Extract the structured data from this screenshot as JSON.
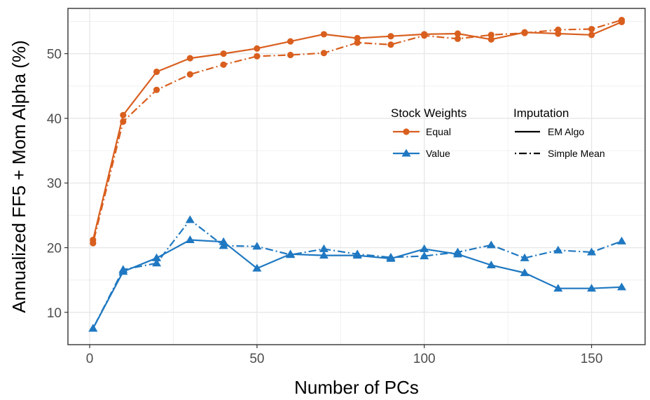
{
  "chart_data": {
    "type": "line",
    "xlabel": "Number of PCs",
    "ylabel": "Annualized FF5 + Mom Alpha (%)",
    "xlim": [
      -6.5,
      166
    ],
    "ylim": [
      5,
      57
    ],
    "x_ticks": [
      0,
      50,
      100,
      150
    ],
    "y_ticks": [
      10,
      20,
      30,
      40,
      50
    ],
    "grid": true,
    "legend_position": "right, inside plot",
    "legend": {
      "weights_title": "Stock Weights",
      "weights": [
        {
          "label": "Equal",
          "color": "#d95f1f",
          "marker": "circle"
        },
        {
          "label": "Value",
          "color": "#1f78c1",
          "marker": "triangle"
        }
      ],
      "imputation_title": "Imputation",
      "imputation": [
        {
          "label": "EM Algo",
          "dash": "solid"
        },
        {
          "label": "Simple Mean",
          "dash": "dotdash"
        }
      ]
    },
    "x": [
      1,
      10,
      20,
      30,
      40,
      50,
      60,
      70,
      80,
      90,
      100,
      110,
      120,
      130,
      140,
      150,
      159
    ],
    "series": [
      {
        "weights": "Equal",
        "imputation": "EM Algo",
        "color": "#d95f1f",
        "marker": "circle",
        "dash": "solid",
        "values": [
          21.2,
          40.5,
          47.2,
          49.3,
          50.0,
          50.8,
          51.9,
          53.0,
          52.4,
          52.7,
          53.0,
          53.1,
          52.2,
          53.3,
          53.1,
          52.9,
          54.9
        ]
      },
      {
        "weights": "Equal",
        "imputation": "Simple Mean",
        "color": "#d95f1f",
        "marker": "circle",
        "dash": "dotdash",
        "values": [
          20.7,
          39.5,
          44.4,
          46.8,
          48.3,
          49.6,
          49.8,
          50.1,
          51.7,
          51.4,
          52.8,
          52.3,
          52.9,
          53.2,
          53.7,
          53.8,
          55.2
        ]
      },
      {
        "weights": "Value",
        "imputation": "EM Algo",
        "color": "#1f78c1",
        "marker": "triangle",
        "dash": "solid",
        "values": [
          7.5,
          16.3,
          18.4,
          21.2,
          20.9,
          16.8,
          19.0,
          18.8,
          18.8,
          18.3,
          19.8,
          19.0,
          17.3,
          16.1,
          13.7,
          13.7,
          13.9
        ]
      },
      {
        "weights": "Value",
        "imputation": "Simple Mean",
        "color": "#1f78c1",
        "marker": "triangle",
        "dash": "dotdash",
        "values": [
          7.5,
          16.6,
          17.6,
          24.3,
          20.3,
          20.2,
          18.9,
          19.8,
          19.0,
          18.5,
          18.7,
          19.3,
          20.4,
          18.4,
          19.6,
          19.3,
          21.0
        ]
      }
    ]
  }
}
